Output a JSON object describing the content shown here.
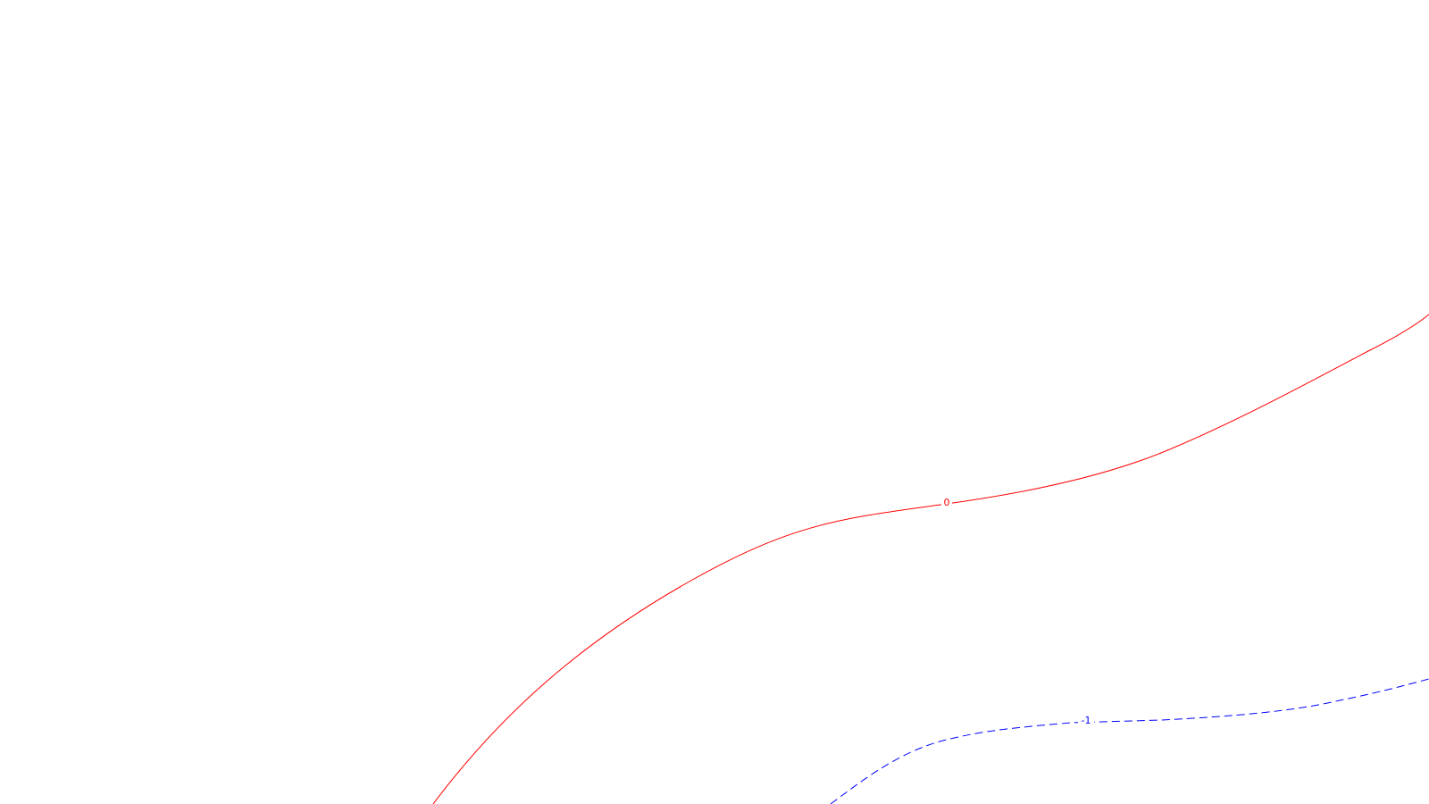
{
  "chart_data": {
    "type": "contour",
    "colors": {
      "background": "#ffffff",
      "positive": "#ff0000",
      "negative": "#0000ff"
    },
    "contours": [
      {
        "label": "0",
        "color": "#ff0000",
        "style": "solid"
      },
      {
        "label": "-1",
        "color": "#0000ff",
        "style": "dashed"
      }
    ]
  }
}
